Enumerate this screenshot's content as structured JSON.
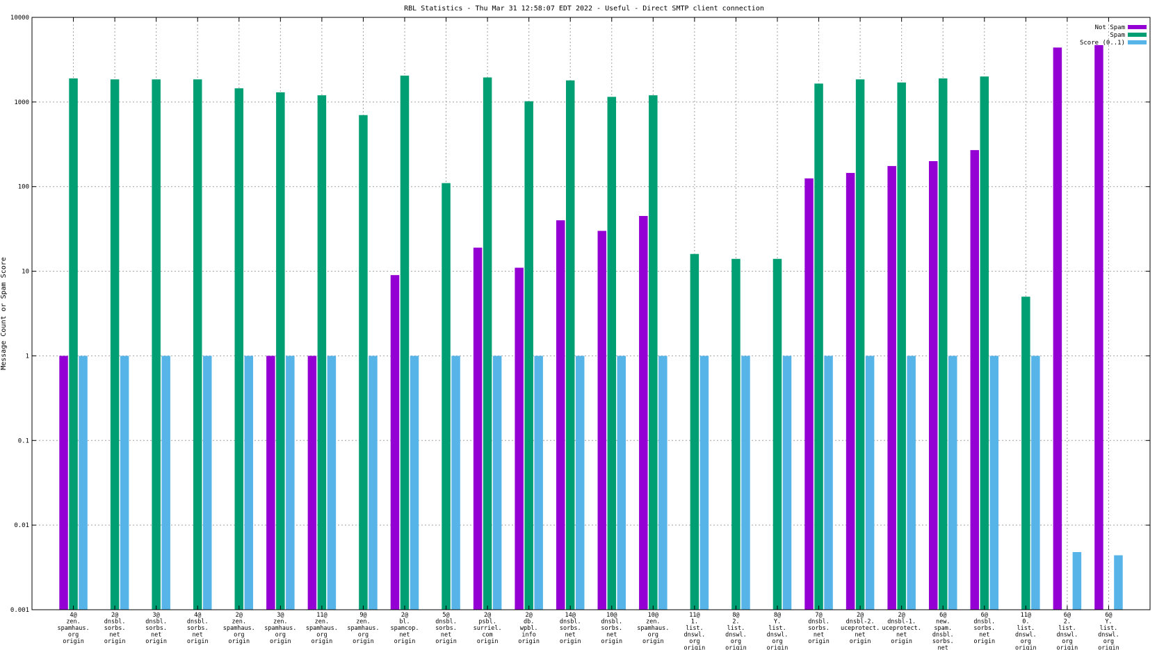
{
  "chart_data": {
    "type": "bar",
    "title": "RBL Statistics - Thu Mar 31 12:58:07 EDT 2022 - Useful - Direct SMTP client connection",
    "xlabel": "",
    "ylabel": "Message Count or Spam Score",
    "yscale": "log",
    "ylim": [
      0.001,
      10000
    ],
    "yticks": [
      "0.001",
      "0.01",
      "0.1",
      "1",
      "10",
      "100",
      "1000",
      "10000"
    ],
    "ytick_values": [
      0.001,
      0.01,
      0.1,
      1,
      10,
      100,
      1000,
      10000
    ],
    "grid": true,
    "legend_position": "top-right",
    "categories": [
      [
        "4@",
        "zen.",
        "spamhaus.",
        "org",
        "origin"
      ],
      [
        "2@",
        "dnsbl.",
        "sorbs.",
        "net",
        "origin"
      ],
      [
        "3@",
        "dnsbl.",
        "sorbs.",
        "net",
        "origin"
      ],
      [
        "4@",
        "dnsbl.",
        "sorbs.",
        "net",
        "origin"
      ],
      [
        "2@",
        "zen.",
        "spamhaus.",
        "org",
        "origin"
      ],
      [
        "3@",
        "zen.",
        "spamhaus.",
        "org",
        "origin"
      ],
      [
        "11@",
        "zen.",
        "spamhaus.",
        "org",
        "origin"
      ],
      [
        "9@",
        "zen.",
        "spamhaus.",
        "org",
        "origin"
      ],
      [
        "2@",
        "bl.",
        "spamcop.",
        "net",
        "origin"
      ],
      [
        "5@",
        "dnsbl.",
        "sorbs.",
        "net",
        "origin"
      ],
      [
        "2@",
        "psbl.",
        "surriel.",
        "com",
        "origin"
      ],
      [
        "2@",
        "db.",
        "wpbl.",
        "info",
        "origin"
      ],
      [
        "14@",
        "dnsbl.",
        "sorbs.",
        "net",
        "origin"
      ],
      [
        "10@",
        "dnsbl.",
        "sorbs.",
        "net",
        "origin"
      ],
      [
        "10@",
        "zen.",
        "spamhaus.",
        "org",
        "origin"
      ],
      [
        "11@",
        "1.",
        "list.",
        "dnswl.",
        "org",
        "origin"
      ],
      [
        "8@",
        "2.",
        "list.",
        "dnswl.",
        "org",
        "origin"
      ],
      [
        "8@",
        "Y.",
        "list.",
        "dnswl.",
        "org",
        "origin"
      ],
      [
        "7@",
        "dnsbl.",
        "sorbs.",
        "net",
        "origin"
      ],
      [
        "2@",
        "dnsbl-2.",
        "uceprotect.",
        "net",
        "origin"
      ],
      [
        "2@",
        "dnsbl-1.",
        "uceprotect.",
        "net",
        "origin"
      ],
      [
        "6@",
        "new.",
        "spam.",
        "dnsbl.",
        "sorbs.",
        "net",
        "origin"
      ],
      [
        "6@",
        "dnsbl.",
        "sorbs.",
        "net",
        "origin"
      ],
      [
        "11@",
        "0.",
        "list.",
        "dnswl.",
        "org",
        "origin"
      ],
      [
        "6@",
        "2.",
        "list.",
        "dnswl.",
        "org",
        "origin"
      ],
      [
        "6@",
        "Y.",
        "list.",
        "dnswl.",
        "org",
        "origin"
      ]
    ],
    "series": [
      {
        "name": "Not Spam",
        "color": "#9400d3",
        "values": [
          1,
          null,
          null,
          null,
          null,
          1,
          1,
          null,
          9,
          null,
          19,
          11,
          40,
          30,
          45,
          null,
          null,
          null,
          125,
          145,
          175,
          200,
          270,
          null,
          4400,
          4700
        ]
      },
      {
        "name": "Spam",
        "color": "#009e73",
        "values": [
          1900,
          1850,
          1850,
          1850,
          1450,
          1300,
          1200,
          700,
          2050,
          110,
          1950,
          1020,
          1800,
          1150,
          1200,
          16,
          14,
          14,
          1650,
          1850,
          1700,
          1900,
          2000,
          5,
          null,
          null
        ]
      },
      {
        "name": "Score (0..1)",
        "color": "#56b4e9",
        "values": [
          1,
          1,
          1,
          1,
          1,
          1,
          1,
          1,
          1,
          1,
          1,
          1,
          1,
          1,
          1,
          1,
          1,
          1,
          1,
          1,
          1,
          1,
          1,
          1,
          0.0048,
          0.0044
        ]
      }
    ]
  }
}
